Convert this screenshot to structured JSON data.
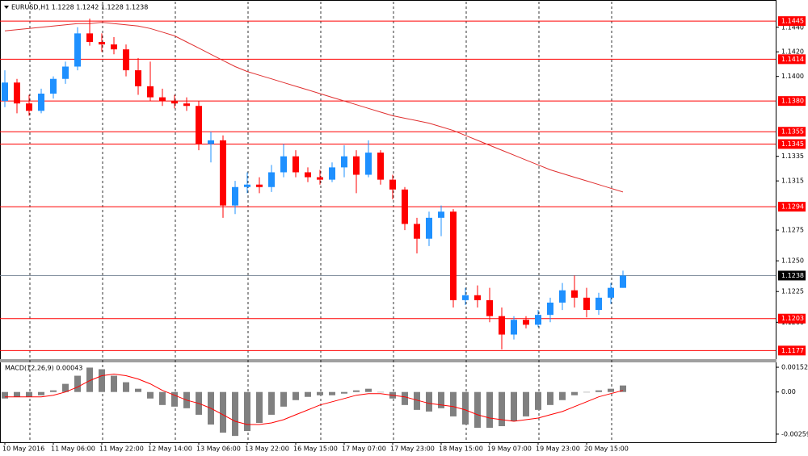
{
  "chart_data": [
    {
      "type": "candlestick",
      "title": "EURUSD,H1  1.1228 1.1242 1.1228 1.1238",
      "categories": [
        "10 May 2016",
        null,
        null,
        null,
        "11 May 06:00",
        null,
        null,
        null,
        "11 May 22:00",
        null,
        null,
        null,
        "12 May 14:00",
        null,
        null,
        null,
        "13 May 06:00",
        null,
        null,
        null,
        "13 May 22:00",
        null,
        null,
        null,
        "16 May 15:00",
        null,
        null,
        null,
        "17 May 07:00",
        null,
        null,
        null,
        "17 May 23:00",
        null,
        null,
        null,
        "18 May 15:00",
        null,
        null,
        null,
        "19 May 07:00",
        null,
        null,
        null,
        "19 May 23:00",
        null,
        null,
        null,
        "20 May 15:00",
        null,
        null,
        null
      ],
      "ohlc": [
        [
          1.138,
          1.1405,
          1.1375,
          1.1395
        ],
        [
          1.1395,
          1.1398,
          1.137,
          1.1378
        ],
        [
          1.1378,
          1.1385,
          1.1368,
          1.1372
        ],
        [
          1.1372,
          1.139,
          1.137,
          1.1386
        ],
        [
          1.1386,
          1.14,
          1.1382,
          1.1398
        ],
        [
          1.1398,
          1.1412,
          1.1394,
          1.1408
        ],
        [
          1.1408,
          1.144,
          1.1405,
          1.1435
        ],
        [
          1.1435,
          1.1447,
          1.1425,
          1.1428
        ],
        [
          1.1428,
          1.1435,
          1.142,
          1.1426
        ],
        [
          1.1426,
          1.1432,
          1.1418,
          1.1422
        ],
        [
          1.1422,
          1.1426,
          1.14,
          1.1405
        ],
        [
          1.1405,
          1.1415,
          1.1385,
          1.1392
        ],
        [
          1.1392,
          1.1412,
          1.138,
          1.1383
        ],
        [
          1.1383,
          1.139,
          1.1376,
          1.138
        ],
        [
          1.138,
          1.1385,
          1.1374,
          1.1378
        ],
        [
          1.1378,
          1.1383,
          1.1372,
          1.1376
        ],
        [
          1.1376,
          1.138,
          1.134,
          1.1345
        ],
        [
          1.1345,
          1.1355,
          1.133,
          1.1348
        ],
        [
          1.1348,
          1.1352,
          1.1285,
          1.1295
        ],
        [
          1.1295,
          1.1315,
          1.1288,
          1.131
        ],
        [
          1.131,
          1.1322,
          1.1305,
          1.1312
        ],
        [
          1.1312,
          1.1318,
          1.1305,
          1.131
        ],
        [
          1.131,
          1.1328,
          1.1306,
          1.1322
        ],
        [
          1.1322,
          1.1345,
          1.1318,
          1.1335
        ],
        [
          1.1335,
          1.134,
          1.1318,
          1.1322
        ],
        [
          1.1322,
          1.1326,
          1.1314,
          1.1318
        ],
        [
          1.1318,
          1.1324,
          1.1312,
          1.1316
        ],
        [
          1.1316,
          1.133,
          1.1314,
          1.1326
        ],
        [
          1.1326,
          1.1344,
          1.1318,
          1.1335
        ],
        [
          1.1335,
          1.134,
          1.1305,
          1.132
        ],
        [
          1.132,
          1.1348,
          1.1318,
          1.1338
        ],
        [
          1.1338,
          1.134,
          1.1312,
          1.1316
        ],
        [
          1.1316,
          1.132,
          1.13,
          1.1308
        ],
        [
          1.1308,
          1.131,
          1.1275,
          1.128
        ],
        [
          1.128,
          1.1285,
          1.1256,
          1.1268
        ],
        [
          1.1268,
          1.129,
          1.1262,
          1.1285
        ],
        [
          1.1285,
          1.1295,
          1.127,
          1.129
        ],
        [
          1.129,
          1.1292,
          1.1212,
          1.1218
        ],
        [
          1.1218,
          1.1228,
          1.1214,
          1.1222
        ],
        [
          1.1222,
          1.123,
          1.1212,
          1.1218
        ],
        [
          1.1218,
          1.1228,
          1.12,
          1.1205
        ],
        [
          1.1205,
          1.1212,
          1.1178,
          1.119
        ],
        [
          1.119,
          1.1205,
          1.1186,
          1.1202
        ],
        [
          1.1202,
          1.1205,
          1.1195,
          1.1198
        ],
        [
          1.1198,
          1.121,
          1.1196,
          1.1206
        ],
        [
          1.1206,
          1.122,
          1.12,
          1.1216
        ],
        [
          1.1216,
          1.1232,
          1.121,
          1.1226
        ],
        [
          1.1226,
          1.1238,
          1.1212,
          1.122
        ],
        [
          1.122,
          1.1228,
          1.1204,
          1.121
        ],
        [
          1.121,
          1.1224,
          1.1206,
          1.122
        ],
        [
          1.122,
          1.1232,
          1.1215,
          1.1228
        ],
        [
          1.1228,
          1.1242,
          1.1228,
          1.1238
        ]
      ],
      "up_color": "#1e90ff",
      "down_color": "#ff0000",
      "ma": {
        "color": "#e03030",
        "values": [
          1.1437,
          1.1438,
          1.1439,
          1.144,
          1.1441,
          1.1442,
          1.1443,
          1.1443,
          1.1444,
          1.1443,
          1.1442,
          1.1441,
          1.1439,
          1.1436,
          1.1433,
          1.1428,
          1.1423,
          1.1418,
          1.1413,
          1.1408,
          1.1404,
          1.1401,
          1.1398,
          1.1395,
          1.1392,
          1.1389,
          1.1386,
          1.1383,
          1.138,
          1.1377,
          1.1374,
          1.1371,
          1.1368,
          1.1366,
          1.1364,
          1.1362,
          1.1359,
          1.1356,
          1.1352,
          1.1348,
          1.1344,
          1.134,
          1.1336,
          1.1332,
          1.1328,
          1.1324,
          1.1321,
          1.1318,
          1.1315,
          1.1312,
          1.1309,
          1.1306
        ]
      },
      "levels": [
        1.1445,
        1.1414,
        {
          "value": 1.138,
          "label": "1.1380"
        },
        1.1355,
        1.1345,
        1.1294,
        1.1203,
        1.1177
      ],
      "level_color": "#ff0000",
      "current": 1.1238,
      "current_color": "#000000",
      "ylim": [
        1.117,
        1.1451
      ],
      "yticks": [
        {
          "value": 1.144,
          "label": "1.1440"
        },
        {
          "value": 1.142,
          "label": "1.1420"
        },
        {
          "value": 1.14,
          "label": "1.1400"
        },
        1.1335,
        1.1315,
        1.1275,
        {
          "value": 1.125,
          "label": "1.1250"
        },
        1.1225,
        {
          "value": 1.12,
          "label": "1.1200"
        }
      ],
      "grid": true
    },
    {
      "type": "bar",
      "title": "MACD(12,26,9) 0.00043",
      "color": "#808080",
      "values": [
        -0.0004,
        -0.0003,
        -0.0003,
        -0.0002,
        0.0001,
        0.0005,
        0.001,
        0.0015,
        0.0014,
        0.001,
        0.0006,
        0.0002,
        -0.0004,
        -0.0008,
        -0.0009,
        -0.001,
        -0.0014,
        -0.002,
        -0.0025,
        -0.0027,
        -0.0024,
        -0.0019,
        -0.0014,
        -0.0009,
        -0.0005,
        -0.0003,
        -0.0002,
        -0.0002,
        -0.0001,
        0.0001,
        0.0002,
        0.0,
        -0.0004,
        -0.0008,
        -0.0011,
        -0.0012,
        -0.001,
        -0.0015,
        -0.002,
        -0.0022,
        -0.0022,
        -0.0021,
        -0.0018,
        -0.0015,
        -0.0011,
        -0.0008,
        -0.0005,
        -0.0002,
        0.0,
        0.0001,
        0.0002,
        0.0004
      ],
      "signal": {
        "color": "#ff0000",
        "values": [
          -0.0003,
          -0.0003,
          -0.0003,
          -0.0003,
          -0.0002,
          0.0,
          0.0003,
          0.0007,
          0.001,
          0.0011,
          0.001,
          0.0008,
          0.0005,
          0.0001,
          -0.0002,
          -0.0005,
          -0.0007,
          -0.001,
          -0.0014,
          -0.0018,
          -0.002,
          -0.002,
          -0.0019,
          -0.0017,
          -0.0014,
          -0.0011,
          -0.0008,
          -0.0006,
          -0.0004,
          -0.0002,
          -0.0001,
          -0.0001,
          -0.0002,
          -0.0003,
          -0.0005,
          -0.0007,
          -0.0008,
          -0.0009,
          -0.0011,
          -0.0014,
          -0.0016,
          -0.0017,
          -0.0018,
          -0.0017,
          -0.0016,
          -0.0014,
          -0.0012,
          -0.0009,
          -0.0006,
          -0.0003,
          -0.0001,
          0.0001
        ]
      },
      "ylim": [
        -0.00309,
        0.00182
      ],
      "yticks": [
        0.00152,
        {
          "value": 0,
          "label": "0.00"
        },
        -0.00259
      ]
    }
  ]
}
